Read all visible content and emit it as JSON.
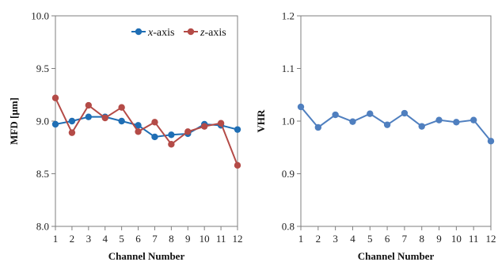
{
  "chart_data": [
    {
      "type": "line",
      "title": "",
      "xlabel": "Channel Number",
      "ylabel": "MFD [μm]",
      "x": [
        1,
        2,
        3,
        4,
        5,
        6,
        7,
        8,
        9,
        10,
        11,
        12
      ],
      "xtick_labels": [
        "1",
        "2",
        "3",
        "4",
        "5",
        "6",
        "7",
        "8",
        "9",
        "10",
        "11",
        "12"
      ],
      "ylim": [
        8.0,
        10.0
      ],
      "ytick_labels": [
        "8.0",
        "8.5",
        "9.0",
        "9.5",
        "10.0"
      ],
      "ytick_values": [
        8.0,
        8.5,
        9.0,
        9.5,
        10.0
      ],
      "grid": false,
      "legend_position": "top-right",
      "series": [
        {
          "name_italic": "x",
          "name_suffix": "-axis",
          "color": "#1f6eb4",
          "values": [
            8.97,
            9.0,
            9.04,
            9.04,
            9.0,
            8.96,
            8.85,
            8.87,
            8.88,
            8.97,
            8.96,
            8.92
          ]
        },
        {
          "name_italic": "z",
          "name_suffix": "-axis",
          "color": "#b44b47",
          "values": [
            9.22,
            8.89,
            9.15,
            9.03,
            9.13,
            8.9,
            8.99,
            8.78,
            8.9,
            8.95,
            8.98,
            8.58
          ]
        }
      ]
    },
    {
      "type": "line",
      "title": "",
      "xlabel": "Channel Number",
      "ylabel": "VHR",
      "x": [
        1,
        2,
        3,
        4,
        5,
        6,
        7,
        8,
        9,
        10,
        11,
        12
      ],
      "xtick_labels": [
        "1",
        "2",
        "3",
        "4",
        "5",
        "6",
        "7",
        "8",
        "9",
        "10",
        "11",
        "12"
      ],
      "ylim": [
        0.8,
        1.2
      ],
      "ytick_labels": [
        "0.8",
        "0.9",
        "1.0",
        "1.1",
        "1.2"
      ],
      "ytick_values": [
        0.8,
        0.9,
        1.0,
        1.1,
        1.2
      ],
      "grid": false,
      "legend_position": "none",
      "series": [
        {
          "color": "#4f7fbf",
          "values": [
            1.027,
            0.988,
            1.012,
            0.999,
            1.014,
            0.993,
            1.015,
            0.99,
            1.002,
            0.998,
            1.002,
            0.962
          ]
        }
      ]
    }
  ]
}
